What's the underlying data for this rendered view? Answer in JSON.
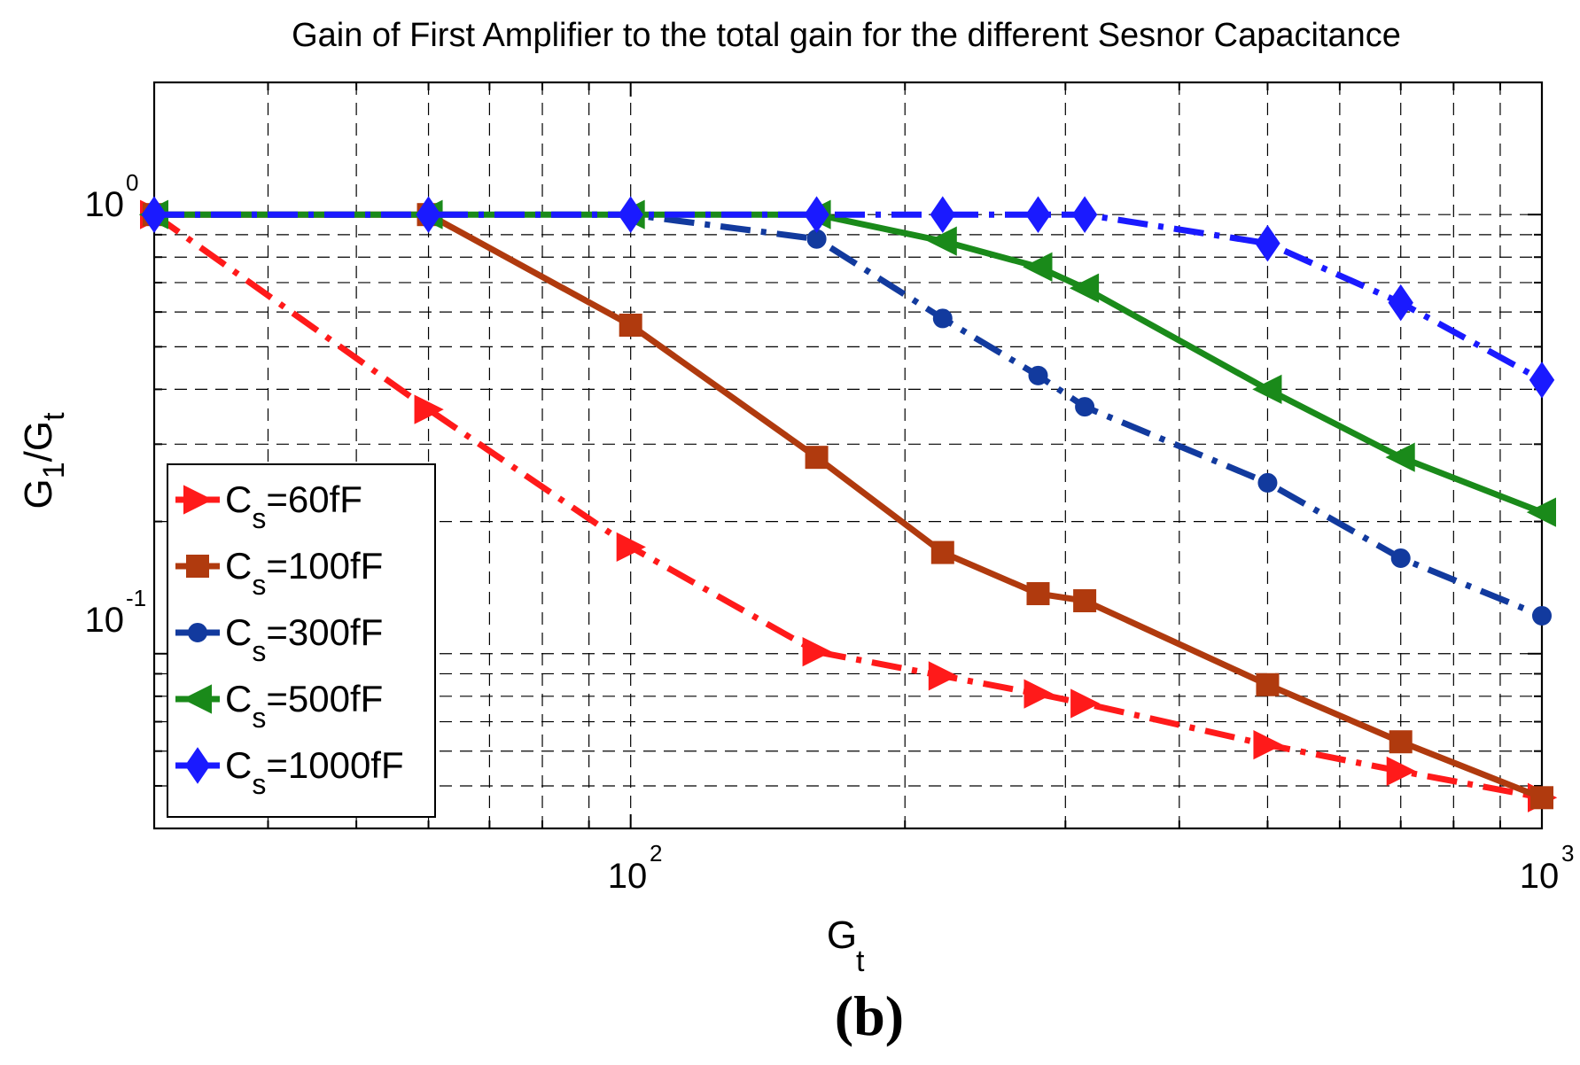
{
  "chart_data": {
    "type": "line",
    "title": "Gain of First Amplifier to the total gain for the different Sesnor Capacitance",
    "xlabel": "G",
    "xlabel_sub": "t",
    "ylabel": "G",
    "ylabel_sub1": "1",
    "ylabel_mid": "/G",
    "ylabel_sub2": "t",
    "xscale": "log",
    "yscale": "log",
    "xlim": [
      30,
      1000
    ],
    "ylim": [
      0.04,
      2
    ],
    "grid": true,
    "legend_position": "lower-left",
    "xticks": [
      {
        "value": 100,
        "base": "10",
        "exp": "2"
      },
      {
        "value": 1000,
        "base": "10",
        "exp": "3"
      }
    ],
    "yticks": [
      {
        "value": 1,
        "base": "10",
        "exp": "0"
      },
      {
        "value": 0.1,
        "base": "10",
        "exp": "-1"
      }
    ],
    "x": [
      30,
      60,
      100,
      160,
      220,
      280,
      315,
      500,
      700,
      1000
    ],
    "series": [
      {
        "name_main": "C",
        "name_sub": "s",
        "name_rest": "=60fF",
        "color": "#ff1a1a",
        "line_style": "dashdot",
        "marker": "triangle-right",
        "values": [
          1.0,
          0.36,
          0.175,
          0.101,
          0.089,
          0.081,
          0.077,
          0.062,
          0.054,
          0.047
        ]
      },
      {
        "name_main": "C",
        "name_sub": "s",
        "name_rest": "=100fF",
        "color": "#b03a0e",
        "line_style": "solid",
        "marker": "square",
        "values": [
          1.0,
          1.0,
          0.56,
          0.28,
          0.17,
          0.137,
          0.132,
          0.085,
          0.063,
          0.047
        ]
      },
      {
        "name_main": "C",
        "name_sub": "s",
        "name_rest": "=300fF",
        "color": "#123a9e",
        "line_style": "dashdot",
        "marker": "circle",
        "values": [
          1.0,
          1.0,
          1.0,
          0.88,
          0.58,
          0.43,
          0.365,
          0.245,
          0.165,
          0.122
        ]
      },
      {
        "name_main": "C",
        "name_sub": "s",
        "name_rest": "=500fF",
        "color": "#1a8a1a",
        "line_style": "solid",
        "marker": "triangle-left",
        "values": [
          1.0,
          1.0,
          1.0,
          1.0,
          0.87,
          0.76,
          0.68,
          0.4,
          0.28,
          0.21
        ]
      },
      {
        "name_main": "C",
        "name_sub": "s",
        "name_rest": "=1000fF",
        "color": "#1a1aff",
        "line_style": "dashdot",
        "marker": "diamond",
        "values": [
          1.0,
          1.0,
          1.0,
          1.0,
          1.0,
          1.0,
          1.0,
          0.86,
          0.63,
          0.42
        ]
      }
    ]
  },
  "caption": "(b)"
}
